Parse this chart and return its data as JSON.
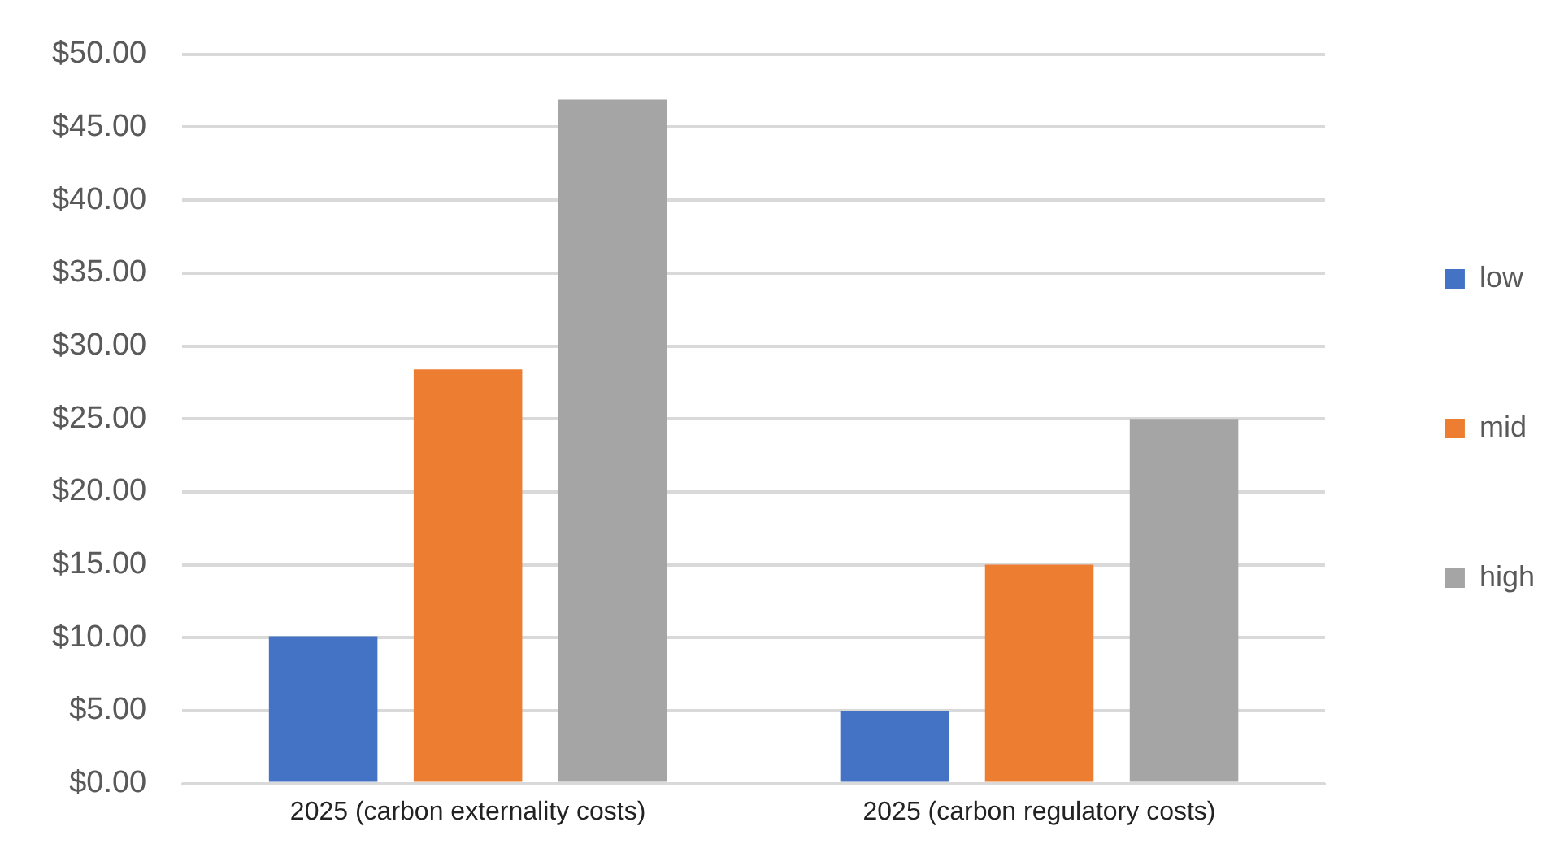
{
  "chart_data": {
    "type": "bar",
    "categories": [
      "2025 (carbon externality costs)",
      "2025 (carbon regulatory costs)"
    ],
    "series": [
      {
        "name": "low",
        "color": "#4472c4",
        "values": [
          10.1,
          5
        ]
      },
      {
        "name": "mid",
        "color": "#ed7d31",
        "values": [
          28.4,
          15
        ]
      },
      {
        "name": "high",
        "color": "#a5a5a5",
        "values": [
          46.9,
          25
        ]
      }
    ],
    "ylim": [
      0,
      50
    ],
    "yticks": [
      {
        "value": 0,
        "label": "$0.00"
      },
      {
        "value": 5,
        "label": "$5.00"
      },
      {
        "value": 10,
        "label": "$10.00"
      },
      {
        "value": 15,
        "label": "$15.00"
      },
      {
        "value": 20,
        "label": "$20.00"
      },
      {
        "value": 25,
        "label": "$25.00"
      },
      {
        "value": 30,
        "label": "$30.00"
      },
      {
        "value": 35,
        "label": "$35.00"
      },
      {
        "value": 40,
        "label": "$40.00"
      },
      {
        "value": 45,
        "label": "$45.00"
      },
      {
        "value": 50,
        "label": "$50.00"
      }
    ],
    "grid": "y",
    "legend": "right"
  }
}
